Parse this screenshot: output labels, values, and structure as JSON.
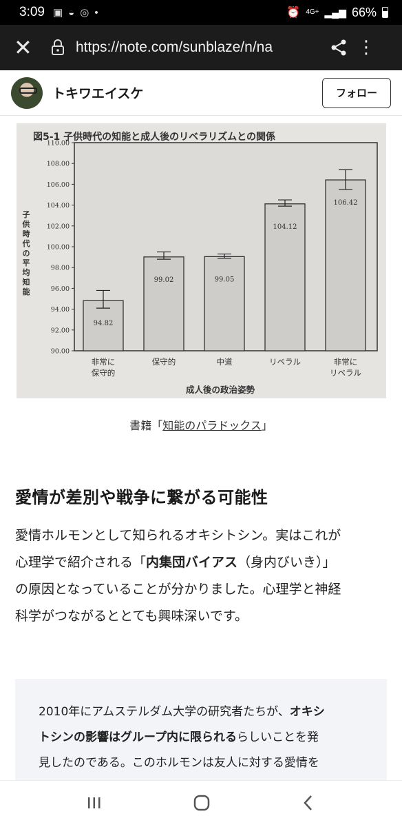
{
  "status": {
    "time": "3:09",
    "network": "4G+",
    "battery": "66%"
  },
  "browser": {
    "url": "https://note.com/sunblaze/n/na"
  },
  "author": {
    "name": "トキワエイスケ",
    "follow_label": "フォロー"
  },
  "figure": {
    "title": "図5-1 子供時代の知能と成人後のリベラリズムとの関係",
    "chart_data": {
      "type": "bar",
      "categories": [
        "非常に保守的",
        "保守的",
        "中道",
        "リベラル",
        "非常にリベラル"
      ],
      "category_lines": [
        [
          "非常に",
          "保守的"
        ],
        [
          "保守的"
        ],
        [
          "中道"
        ],
        [
          "リベラル"
        ],
        [
          "非常に",
          "リベラル"
        ]
      ],
      "values": [
        94.82,
        99.02,
        99.05,
        104.12,
        106.42
      ],
      "labels": [
        "94.82",
        "99.02",
        "99.05",
        "104.12",
        "106.42"
      ],
      "error_low": [
        94.1,
        98.8,
        98.9,
        103.9,
        105.5
      ],
      "error_high": [
        95.8,
        99.5,
        99.3,
        104.5,
        107.4
      ],
      "ylim": [
        90,
        110
      ],
      "yticks": [
        "90.00",
        "92.00",
        "94.00",
        "96.00",
        "98.00",
        "100.00",
        "102.00",
        "104.00",
        "106.00",
        "108.00",
        "110.00"
      ],
      "xlabel": "成人後の政治姿勢",
      "ylabel": "子供時代の平均知能"
    }
  },
  "caption": {
    "prefix": "書籍「",
    "link": "知能のパラドックス",
    "suffix": "」"
  },
  "article": {
    "heading": "愛情が差別や戦争に繋がる可能性",
    "para_1": "愛情ホルモンとして知られるオキシトシン。実はこれが",
    "para_2a": "心理学で紹介される「",
    "para_2b": "内集団バイアス",
    "para_2c": "（身内びいき）」",
    "para_3": "の原因となっていることが分かりました。心理学と神経",
    "para_4": "科学がつながるととても興味深いです。"
  },
  "quote": {
    "line1a": "2010年にアムステルダム大学の研究者たちが、",
    "line1b": "オキシ",
    "line2a": "トシンの影響はグループ内に限られる",
    "line2b": "らしいことを発",
    "line3": "見したのである。このホルモンは友人に対する愛情を"
  }
}
